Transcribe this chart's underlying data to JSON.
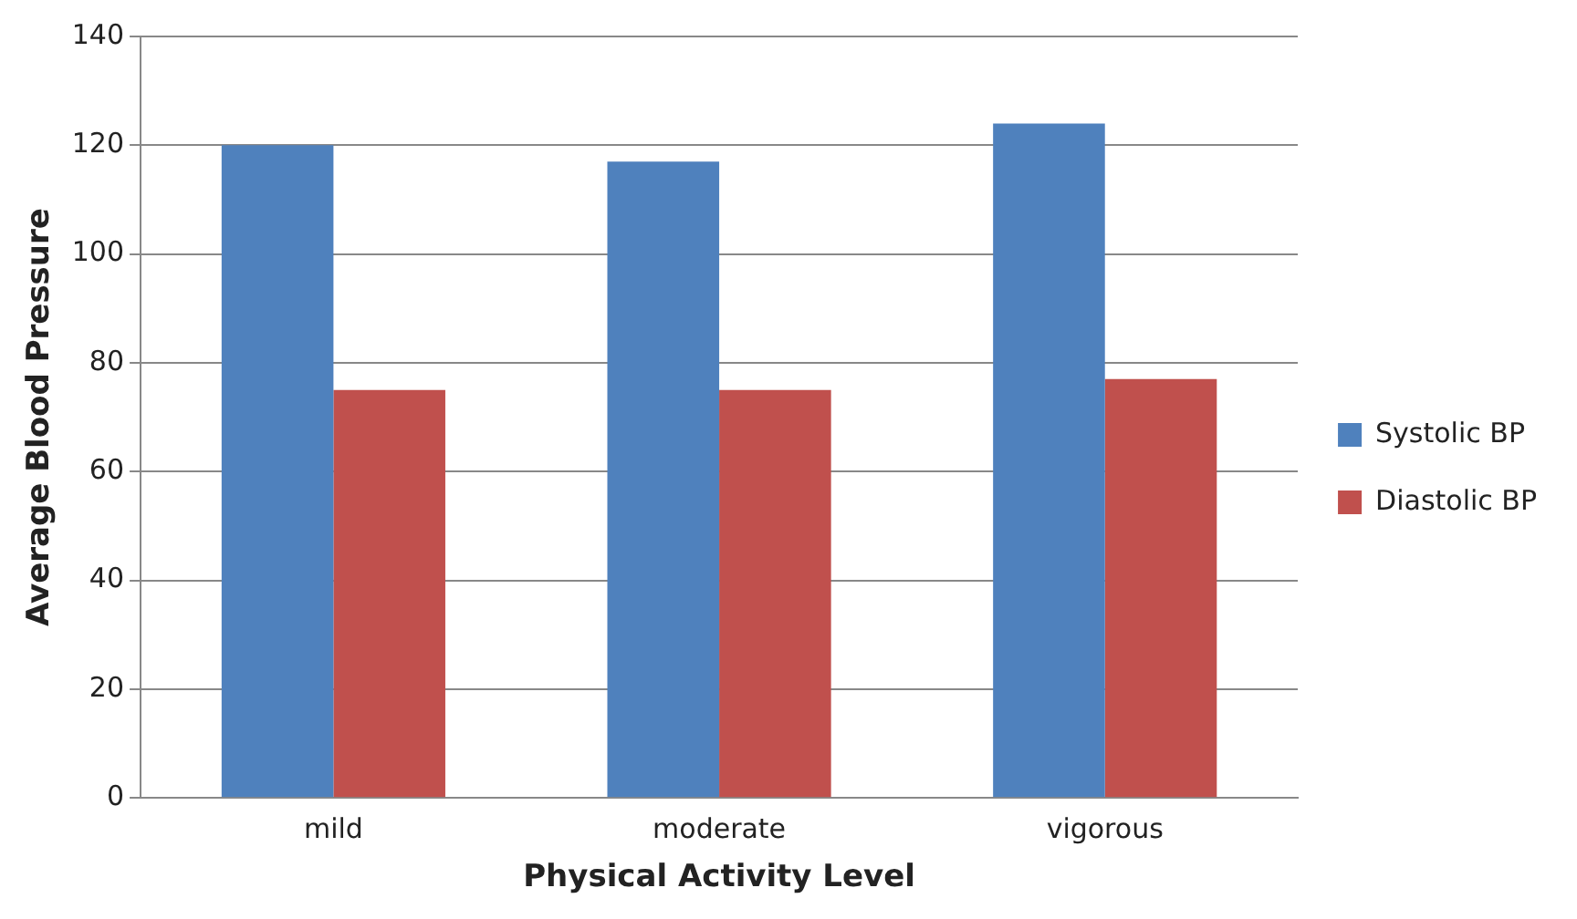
{
  "chart_data": {
    "type": "bar",
    "xlabel": "Physical Activity Level",
    "ylabel": "Average Blood Pressure",
    "categories": [
      "mild",
      "moderate",
      "vigorous"
    ],
    "series": [
      {
        "name": "Systolic BP",
        "color": "#4f81bd",
        "values": [
          120,
          117,
          124
        ]
      },
      {
        "name": "Diastolic BP",
        "color": "#c0504d",
        "values": [
          75,
          75,
          77
        ]
      }
    ],
    "ylim": [
      0,
      140
    ],
    "yticks": [
      0,
      20,
      40,
      60,
      80,
      100,
      120,
      140
    ],
    "grid": "y",
    "legend": "right"
  }
}
